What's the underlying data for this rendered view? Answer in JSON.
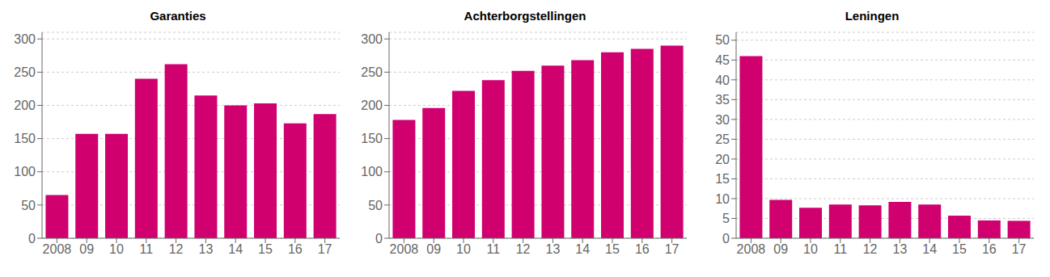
{
  "chart_data": [
    {
      "type": "bar",
      "title": "Garanties",
      "categories": [
        "2008",
        "09",
        "10",
        "11",
        "12",
        "13",
        "14",
        "15",
        "16",
        "17"
      ],
      "values": [
        65,
        157,
        157,
        240,
        262,
        215,
        200,
        203,
        173,
        187
      ],
      "color": "#D0006F",
      "ylim": [
        0,
        310
      ],
      "yticks": [
        0,
        50,
        100,
        150,
        200,
        250,
        300
      ],
      "grid": true
    },
    {
      "type": "bar",
      "title": "Achterborgstellingen",
      "categories": [
        "2008",
        "09",
        "10",
        "11",
        "12",
        "13",
        "14",
        "15",
        "16",
        "17"
      ],
      "values": [
        178,
        196,
        222,
        238,
        252,
        260,
        268,
        280,
        285,
        290
      ],
      "color": "#D0006F",
      "ylim": [
        0,
        310
      ],
      "yticks": [
        0,
        50,
        100,
        150,
        200,
        250,
        300
      ],
      "grid": true
    },
    {
      "type": "bar",
      "title": "Leningen",
      "categories": [
        "2008",
        "09",
        "10",
        "11",
        "12",
        "13",
        "14",
        "15",
        "16",
        "17"
      ],
      "values": [
        46,
        9.7,
        7.7,
        8.5,
        8.3,
        9.2,
        8.5,
        5.7,
        4.5,
        4.4
      ],
      "color": "#D0006F",
      "ylim": [
        0,
        52
      ],
      "yticks": [
        0,
        5,
        10,
        15,
        20,
        25,
        30,
        35,
        40,
        45,
        50
      ],
      "grid": true
    }
  ]
}
